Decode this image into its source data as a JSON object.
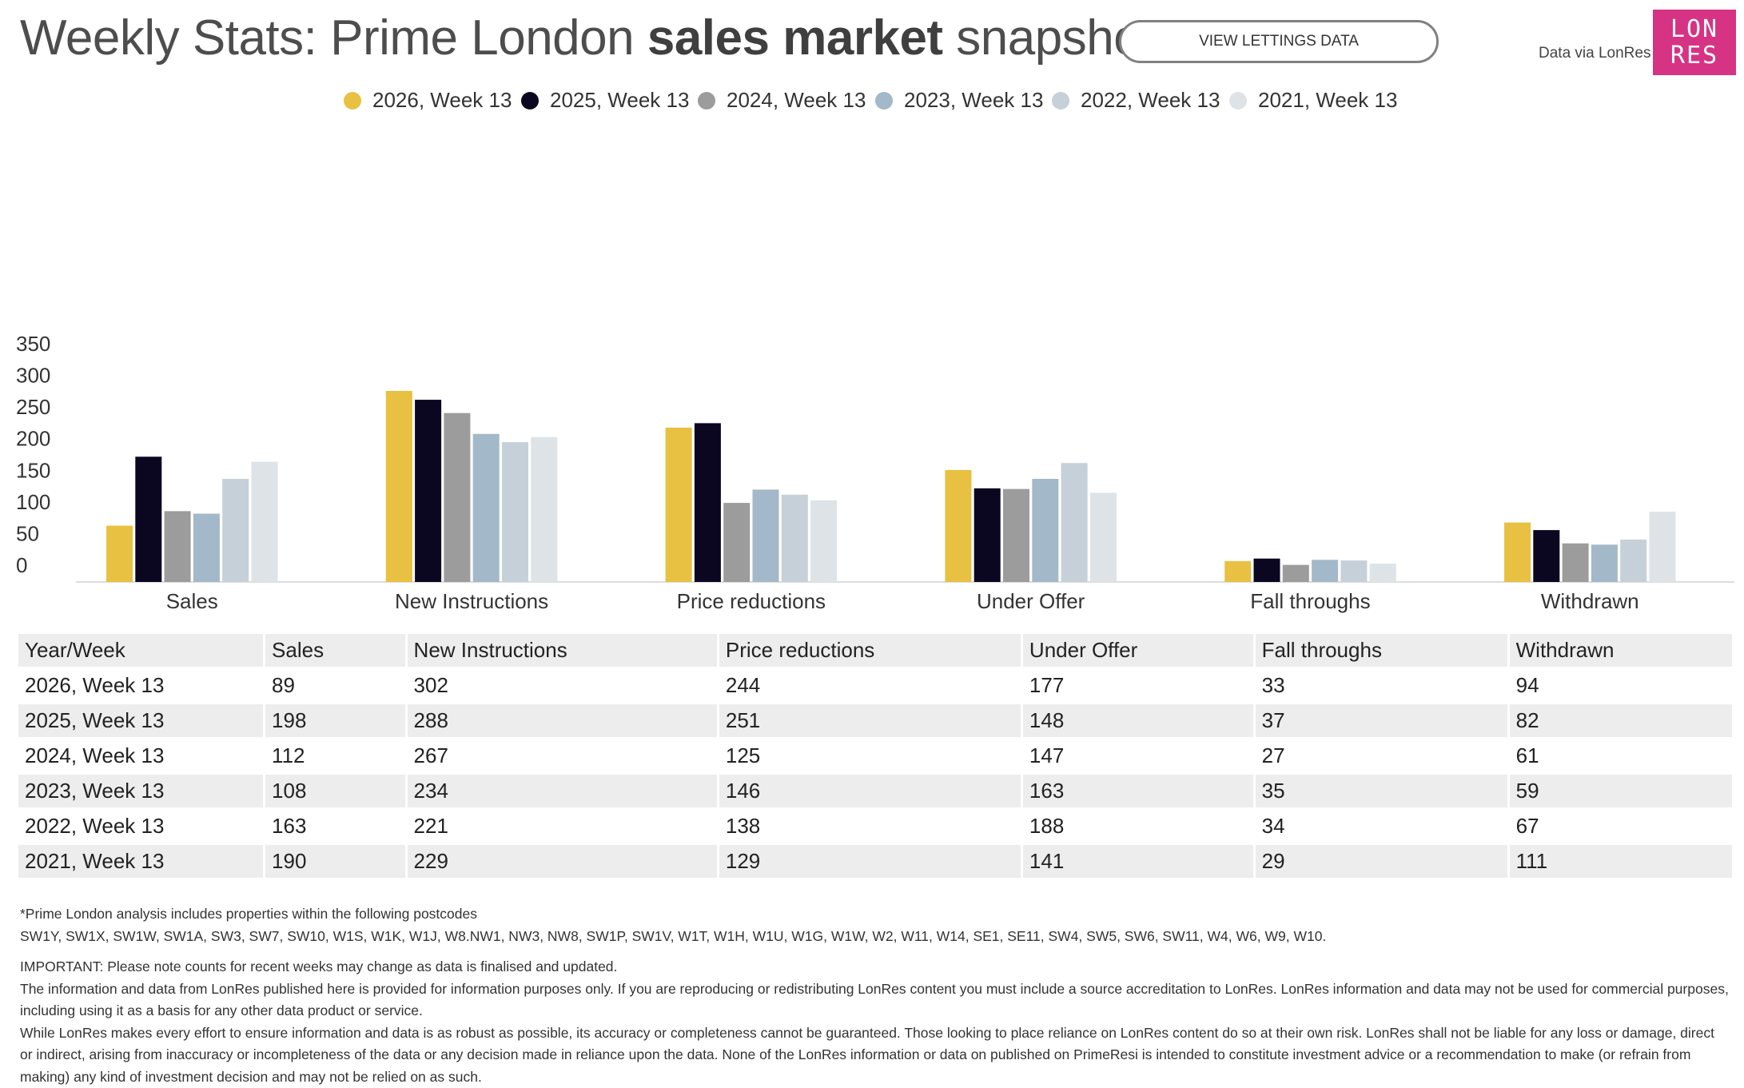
{
  "header": {
    "title_pre": "Weekly Stats: Prime London ",
    "title_bold": "sales market",
    "title_post": " snapshot",
    "button_label": "VIEW LETTINGS DATA",
    "data_via": "Data via LonRes",
    "logo_line1": "LON",
    "logo_line2": "RES"
  },
  "colors": {
    "series": [
      "#e8c142",
      "#0b0721",
      "#9c9c9c",
      "#a3b8c8",
      "#c6d0d8",
      "#dde3e7"
    ],
    "brand": "#d63384"
  },
  "chart_data": {
    "type": "bar",
    "title": "Weekly Stats: Prime London sales market snapshot",
    "xlabel": "",
    "ylabel": "",
    "ylim": [
      0,
      350
    ],
    "yticks": [
      "0",
      "50",
      "100",
      "150",
      "200",
      "250",
      "300",
      "350"
    ],
    "grid": false,
    "legend_position": "top",
    "categories": [
      "Sales",
      "New Instructions",
      "Price reductions",
      "Under Offer",
      "Fall throughs",
      "Withdrawn"
    ],
    "series": [
      {
        "name": "2026, Week 13",
        "values": [
          89,
          302,
          244,
          177,
          33,
          94
        ]
      },
      {
        "name": "2025, Week 13",
        "values": [
          198,
          288,
          251,
          148,
          37,
          82
        ]
      },
      {
        "name": "2024, Week 13",
        "values": [
          112,
          267,
          125,
          147,
          27,
          61
        ]
      },
      {
        "name": "2023, Week 13",
        "values": [
          108,
          234,
          146,
          163,
          35,
          59
        ]
      },
      {
        "name": "2022, Week 13",
        "values": [
          163,
          221,
          138,
          188,
          34,
          67
        ]
      },
      {
        "name": "2021, Week 13",
        "values": [
          190,
          229,
          129,
          141,
          29,
          111
        ]
      }
    ]
  },
  "table": {
    "headers": [
      "Year/Week",
      "Sales",
      "New Instructions",
      "Price reductions",
      "Under Offer",
      "Fall throughs",
      "Withdrawn"
    ],
    "rows": [
      [
        "2026, Week 13",
        "89",
        "302",
        "244",
        "177",
        "33",
        "94"
      ],
      [
        "2025, Week 13",
        "198",
        "288",
        "251",
        "148",
        "37",
        "82"
      ],
      [
        "2024, Week 13",
        "112",
        "267",
        "125",
        "147",
        "27",
        "61"
      ],
      [
        "2023, Week 13",
        "108",
        "234",
        "146",
        "163",
        "35",
        "59"
      ],
      [
        "2022, Week 13",
        "163",
        "221",
        "138",
        "188",
        "34",
        "67"
      ],
      [
        "2021, Week 13",
        "190",
        "229",
        "129",
        "141",
        "29",
        "111"
      ]
    ]
  },
  "notes": {
    "postcodes_intro": "*Prime London analysis includes properties within the following postcodes",
    "postcodes": "SW1Y, SW1X, SW1W, SW1A, SW3, SW7, SW10, W1S, W1K, W1J, W8.NW1, NW3, NW8, SW1P, SW1V, W1T, W1H, W1U, W1G, W1W, W2, W11, W14, SE1, SE11, SW4, SW5, SW6, SW11, W4, W6, W9, W10.",
    "important": "IMPORTANT: Please note counts for recent weeks may change as data is finalised and updated.",
    "info": "The information and data from LonRes published here is provided for information purposes only. If you are reproducing or redistributing LonRes content you must include a source accreditation to LonRes. LonRes information and data may not be used for commercial purposes, including using it as a basis for any other data product or service.",
    "disclaimer": "While LonRes makes every effort to ensure information and data is as robust as possible, its accuracy or completeness cannot be guaranteed. Those looking to place reliance on LonRes content do so at their own risk. LonRes shall not be liable for any loss or damage, direct or indirect, arising from inaccuracy or incompleteness of the data or any decision made in reliance upon the data. None of the LonRes information or data on published on PrimeResi is intended to constitute investment advice or a recommendation to make (or refrain from making) any kind of investment decision and may not be relied on as such."
  }
}
